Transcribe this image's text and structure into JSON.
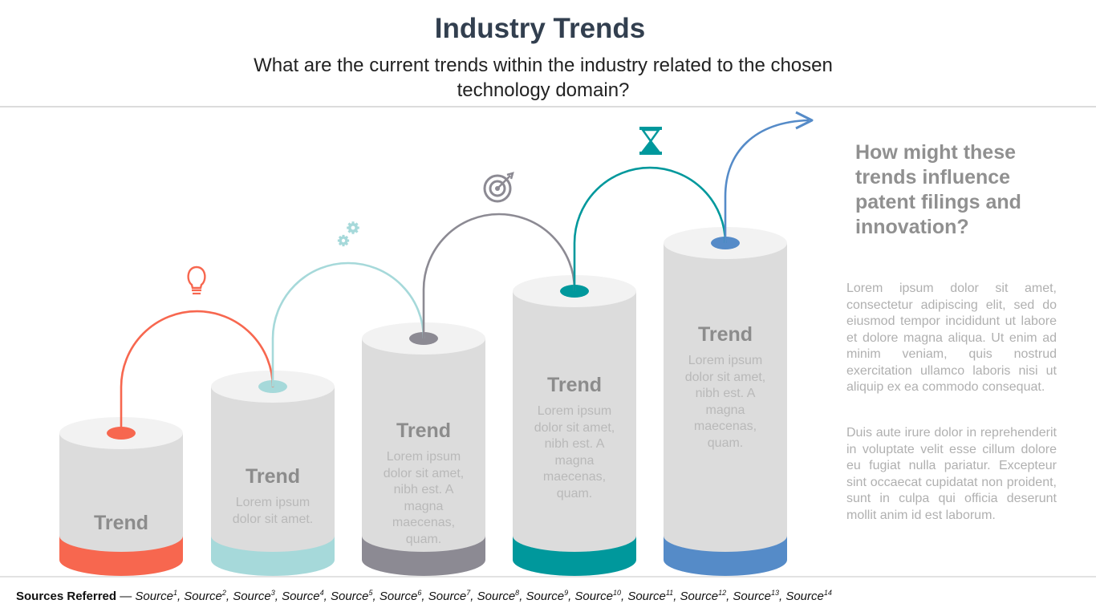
{
  "header": {
    "title": "Industry Trends",
    "subtitle": "What are the current trends within the industry related to the chosen technology domain?"
  },
  "colors": {
    "orange": "#f7674f",
    "light_teal": "#a6d9da",
    "gray": "#8c8a93",
    "teal": "#00989c",
    "blue": "#558bc8",
    "cylinder": "#dcdcdc"
  },
  "trends": [
    {
      "title": "Trend",
      "text": "",
      "icon": "lightbulb-icon",
      "color": "#f7674f"
    },
    {
      "title": "Trend",
      "text": "Lorem ipsum dolor sit amet.",
      "icon": "gears-icon",
      "color": "#a6d9da"
    },
    {
      "title": "Trend",
      "text": "Lorem ipsum dolor sit amet, nibh est. A magna maecenas, quam.",
      "icon": "target-icon",
      "color": "#8c8a93"
    },
    {
      "title": "Trend",
      "text": "Lorem ipsum dolor sit amet, nibh est. A magna maecenas, quam.",
      "icon": "hourglass-icon",
      "color": "#00989c"
    },
    {
      "title": "Trend",
      "text": "Lorem ipsum dolor sit amet, nibh est. A magna maecenas, quam.",
      "icon": "arrow-icon",
      "color": "#558bc8"
    }
  ],
  "side": {
    "heading": "How might these trends influence patent filings and innovation?",
    "paragraph1": "Lorem ipsum dolor sit amet, consectetur adipiscing elit, sed do eiusmod tempor incididunt ut labore et dolore magna aliqua. Ut enim ad minim veniam, quis nostrud exercitation ullamco laboris nisi ut aliquip ex ea commodo consequat.",
    "paragraph2": "Duis aute irure dolor in reprehenderit in voluptate velit esse cillum dolore eu fugiat nulla pariatur. Excepteur sint occaecat cupidatat non proident, sunt in culpa qui officia deserunt mollit anim id est laborum."
  },
  "footer": {
    "label": "Sources Referred",
    "separator": " — ",
    "sources": [
      {
        "name": "Source",
        "num": "1"
      },
      {
        "name": "Source",
        "num": "2"
      },
      {
        "name": "Source",
        "num": "3"
      },
      {
        "name": "Source",
        "num": "4"
      },
      {
        "name": "Source",
        "num": "5"
      },
      {
        "name": "Source",
        "num": "6"
      },
      {
        "name": "Source",
        "num": "7"
      },
      {
        "name": "Source",
        "num": "8"
      },
      {
        "name": "Source",
        "num": "9"
      },
      {
        "name": "Source",
        "num": "10"
      },
      {
        "name": "Source",
        "num": "11"
      },
      {
        "name": "Source",
        "num": "12"
      },
      {
        "name": "Source",
        "num": "13"
      },
      {
        "name": "Source",
        "num": "14"
      }
    ]
  }
}
